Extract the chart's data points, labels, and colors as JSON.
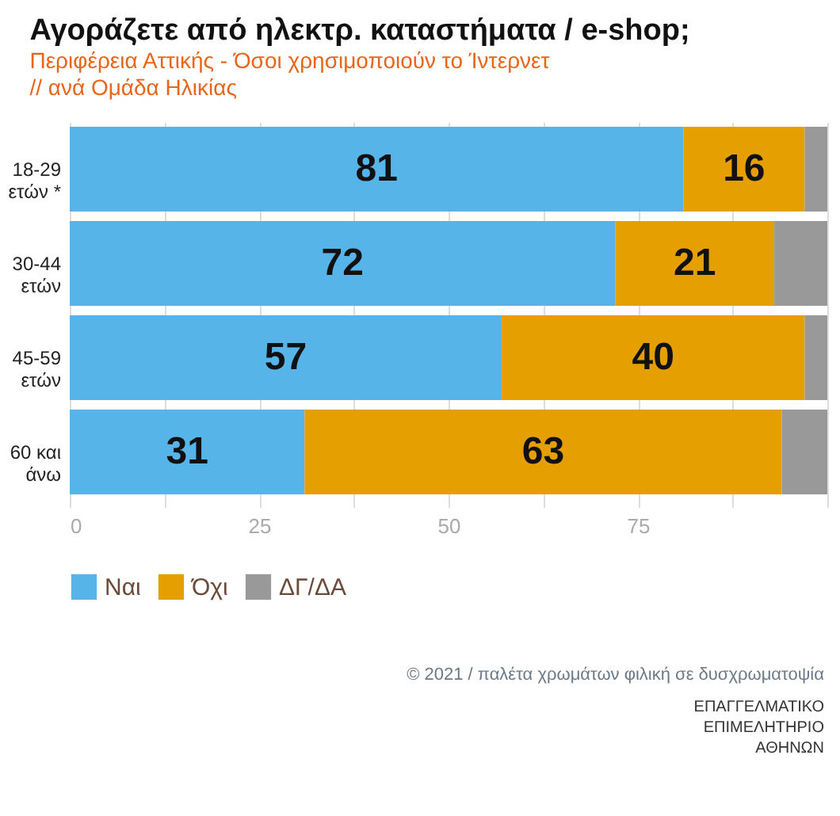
{
  "chart_data": {
    "type": "bar",
    "orientation": "horizontal",
    "stacked": true,
    "title": "Αγοράζετε από ηλεκτρ. καταστήματα / e-shop;",
    "subtitle": "Περιφέρεια Αττικής - Όσοι χρησιμοποιούν το Ίντερνετ\n // ανά Ομάδα Ηλικίας",
    "categories": [
      "18-29\nετών *",
      "30-44\nετών",
      "45-59\nετών",
      "60 και\nάνω"
    ],
    "series": [
      {
        "name": "Ναι",
        "color": "#56b4e9",
        "values": [
          81,
          72,
          57,
          31
        ],
        "value_labels": [
          "81",
          "72",
          "57",
          "31"
        ]
      },
      {
        "name": "Όχι",
        "color": "#e69f00",
        "values": [
          16,
          21,
          40,
          63
        ],
        "value_labels": [
          "16",
          "21",
          "40",
          "63"
        ]
      },
      {
        "name": "ΔΓ/ΔΑ",
        "color": "#999999",
        "values": [
          3,
          7,
          3,
          6
        ],
        "value_labels": [
          null,
          null,
          null,
          null
        ]
      }
    ],
    "xlim": [
      0,
      100
    ],
    "xticks": [
      0,
      {
        "value": 12.5,
        "label": null
      },
      25,
      {
        "value": 37.5,
        "label": null
      },
      50,
      {
        "value": 62.5,
        "label": null
      },
      75,
      {
        "value": 87.5,
        "label": null
      },
      {
        "value": 100,
        "label": null
      }
    ],
    "grid": "x",
    "legend": "bottom",
    "annotations": [
      "© 2021 / παλέτα χρωμάτων φιλική σε δυσχρωματοψία",
      "ΕΠΑΓΓΕΛΜΑΤΙΚΟ\nΕΠΙΜΕΛΗΤΗΡΙΟ\nΑΘΗΝΩΝ"
    ]
  }
}
